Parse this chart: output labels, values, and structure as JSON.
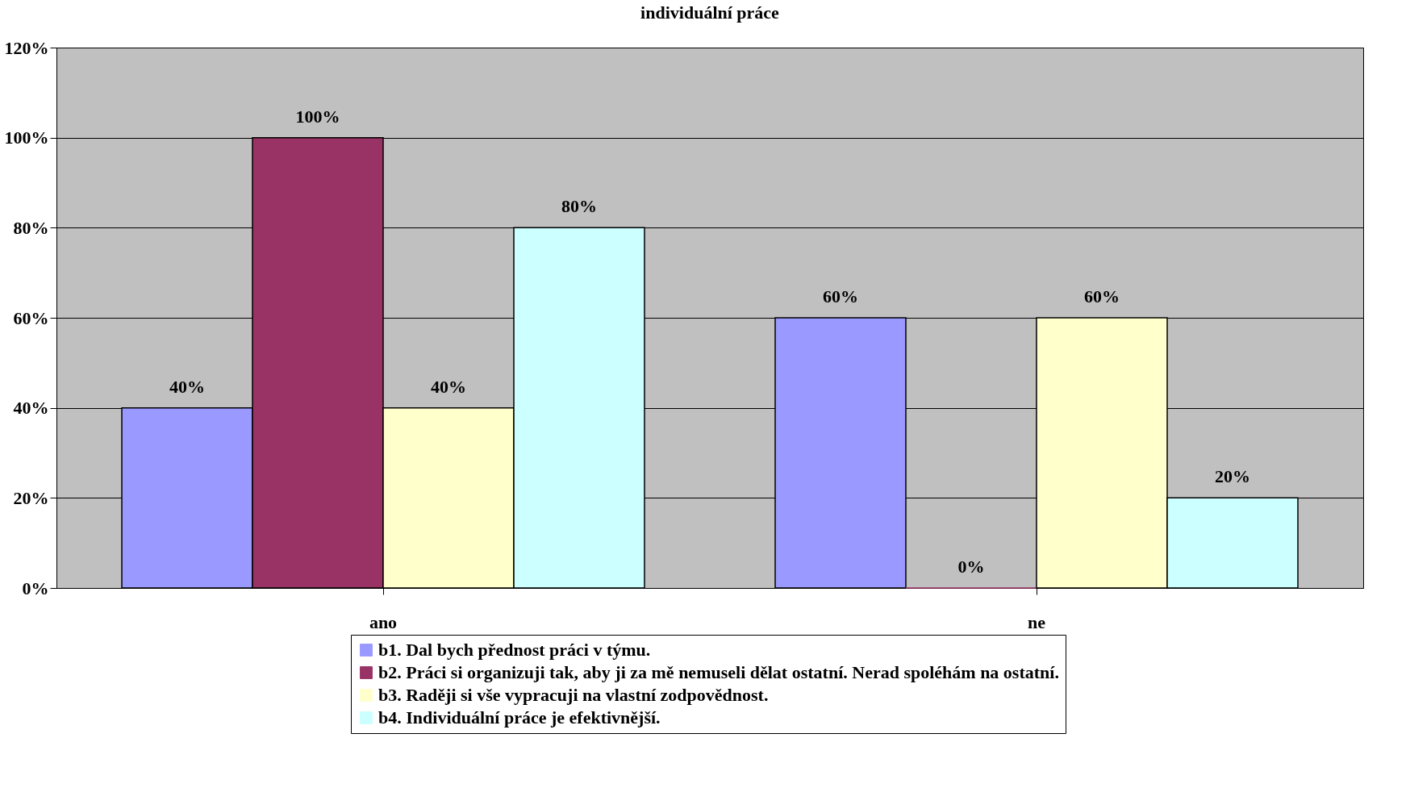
{
  "chart_data": {
    "type": "bar",
    "title": "individuální práce",
    "categories": [
      "ano",
      "ne"
    ],
    "series": [
      {
        "name": "b1. Dal bych přednost práci v týmu.",
        "color": "#9999ff",
        "values": [
          40,
          60
        ],
        "value_labels": [
          "40%",
          "60%"
        ]
      },
      {
        "name": "b2. Práci si organizuji tak, aby ji za mě nemuseli dělat ostatní. Nerad spoléhám na ostatní.",
        "color": "#993366",
        "values": [
          100,
          0
        ],
        "value_labels": [
          "100%",
          "0%"
        ]
      },
      {
        "name": "b3. Raději si vše vypracuji na vlastní zodpovědnost.",
        "color": "#ffffcc",
        "values": [
          40,
          60
        ],
        "value_labels": [
          "40%",
          "60%"
        ]
      },
      {
        "name": "b4. Individuální práce je efektivnější.",
        "color": "#ccffff",
        "values": [
          80,
          20
        ],
        "value_labels": [
          "80%",
          "20%"
        ]
      }
    ],
    "ylim": [
      0,
      120
    ],
    "yticks": [
      {
        "value": 0,
        "label": "0%"
      },
      {
        "value": 20,
        "label": "20%"
      },
      {
        "value": 40,
        "label": "40%"
      },
      {
        "value": 60,
        "label": "60%"
      },
      {
        "value": 80,
        "label": "80%"
      },
      {
        "value": 100,
        "label": "100%"
      },
      {
        "value": 120,
        "label": "120%"
      }
    ],
    "grid": "y",
    "legend": "bottom"
  }
}
